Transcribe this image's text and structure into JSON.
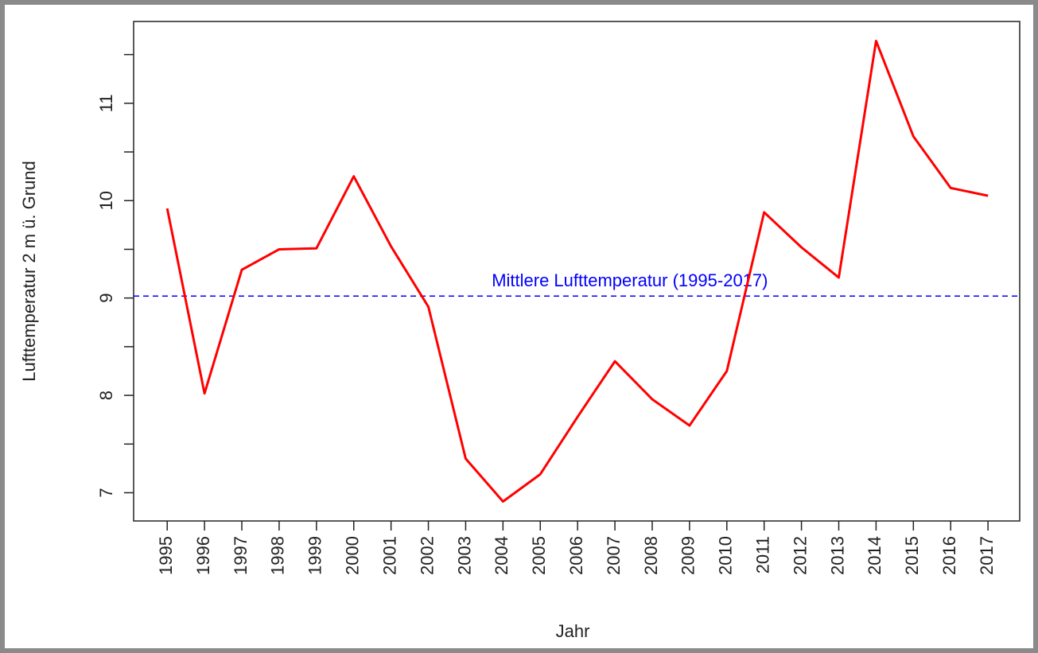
{
  "chart_data": {
    "type": "line",
    "x_label": "Jahr",
    "y_label": "Lufttemperatur 2 m ü. Grund",
    "x": [
      1995,
      1996,
      1997,
      1998,
      1999,
      2000,
      2001,
      2002,
      2003,
      2004,
      2005,
      2006,
      2007,
      2008,
      2009,
      2010,
      2011,
      2012,
      2013,
      2014,
      2015,
      2016,
      2017
    ],
    "series": [
      {
        "color": "#ff0000",
        "values": [
          9.92,
          8.02,
          9.29,
          9.5,
          9.51,
          10.25,
          9.53,
          8.91,
          7.35,
          6.91,
          7.19,
          7.78,
          8.35,
          7.96,
          7.69,
          8.25,
          9.88,
          9.52,
          9.21,
          11.64,
          10.66,
          10.13,
          10.05
        ]
      }
    ],
    "mean_line": {
      "value": 9.02,
      "label": "Mittlere Lufttemperatur (1995-2017)",
      "label_x": 2007.4,
      "color": "#0000ff"
    },
    "xlim": [
      1994.1,
      2017.85
    ],
    "xticks": [
      1995,
      1996,
      1997,
      1998,
      1999,
      2000,
      2001,
      2002,
      2003,
      2004,
      2005,
      2006,
      2007,
      2008,
      2009,
      2010,
      2011,
      2012,
      2013,
      2014,
      2015,
      2016,
      2017
    ],
    "ylim": [
      6.71,
      11.84
    ],
    "yticks": [
      7,
      8,
      9,
      10,
      11
    ],
    "minor_yticks": [
      7.5,
      8.5,
      9.5,
      10.5,
      11.5
    ],
    "grid": false
  }
}
